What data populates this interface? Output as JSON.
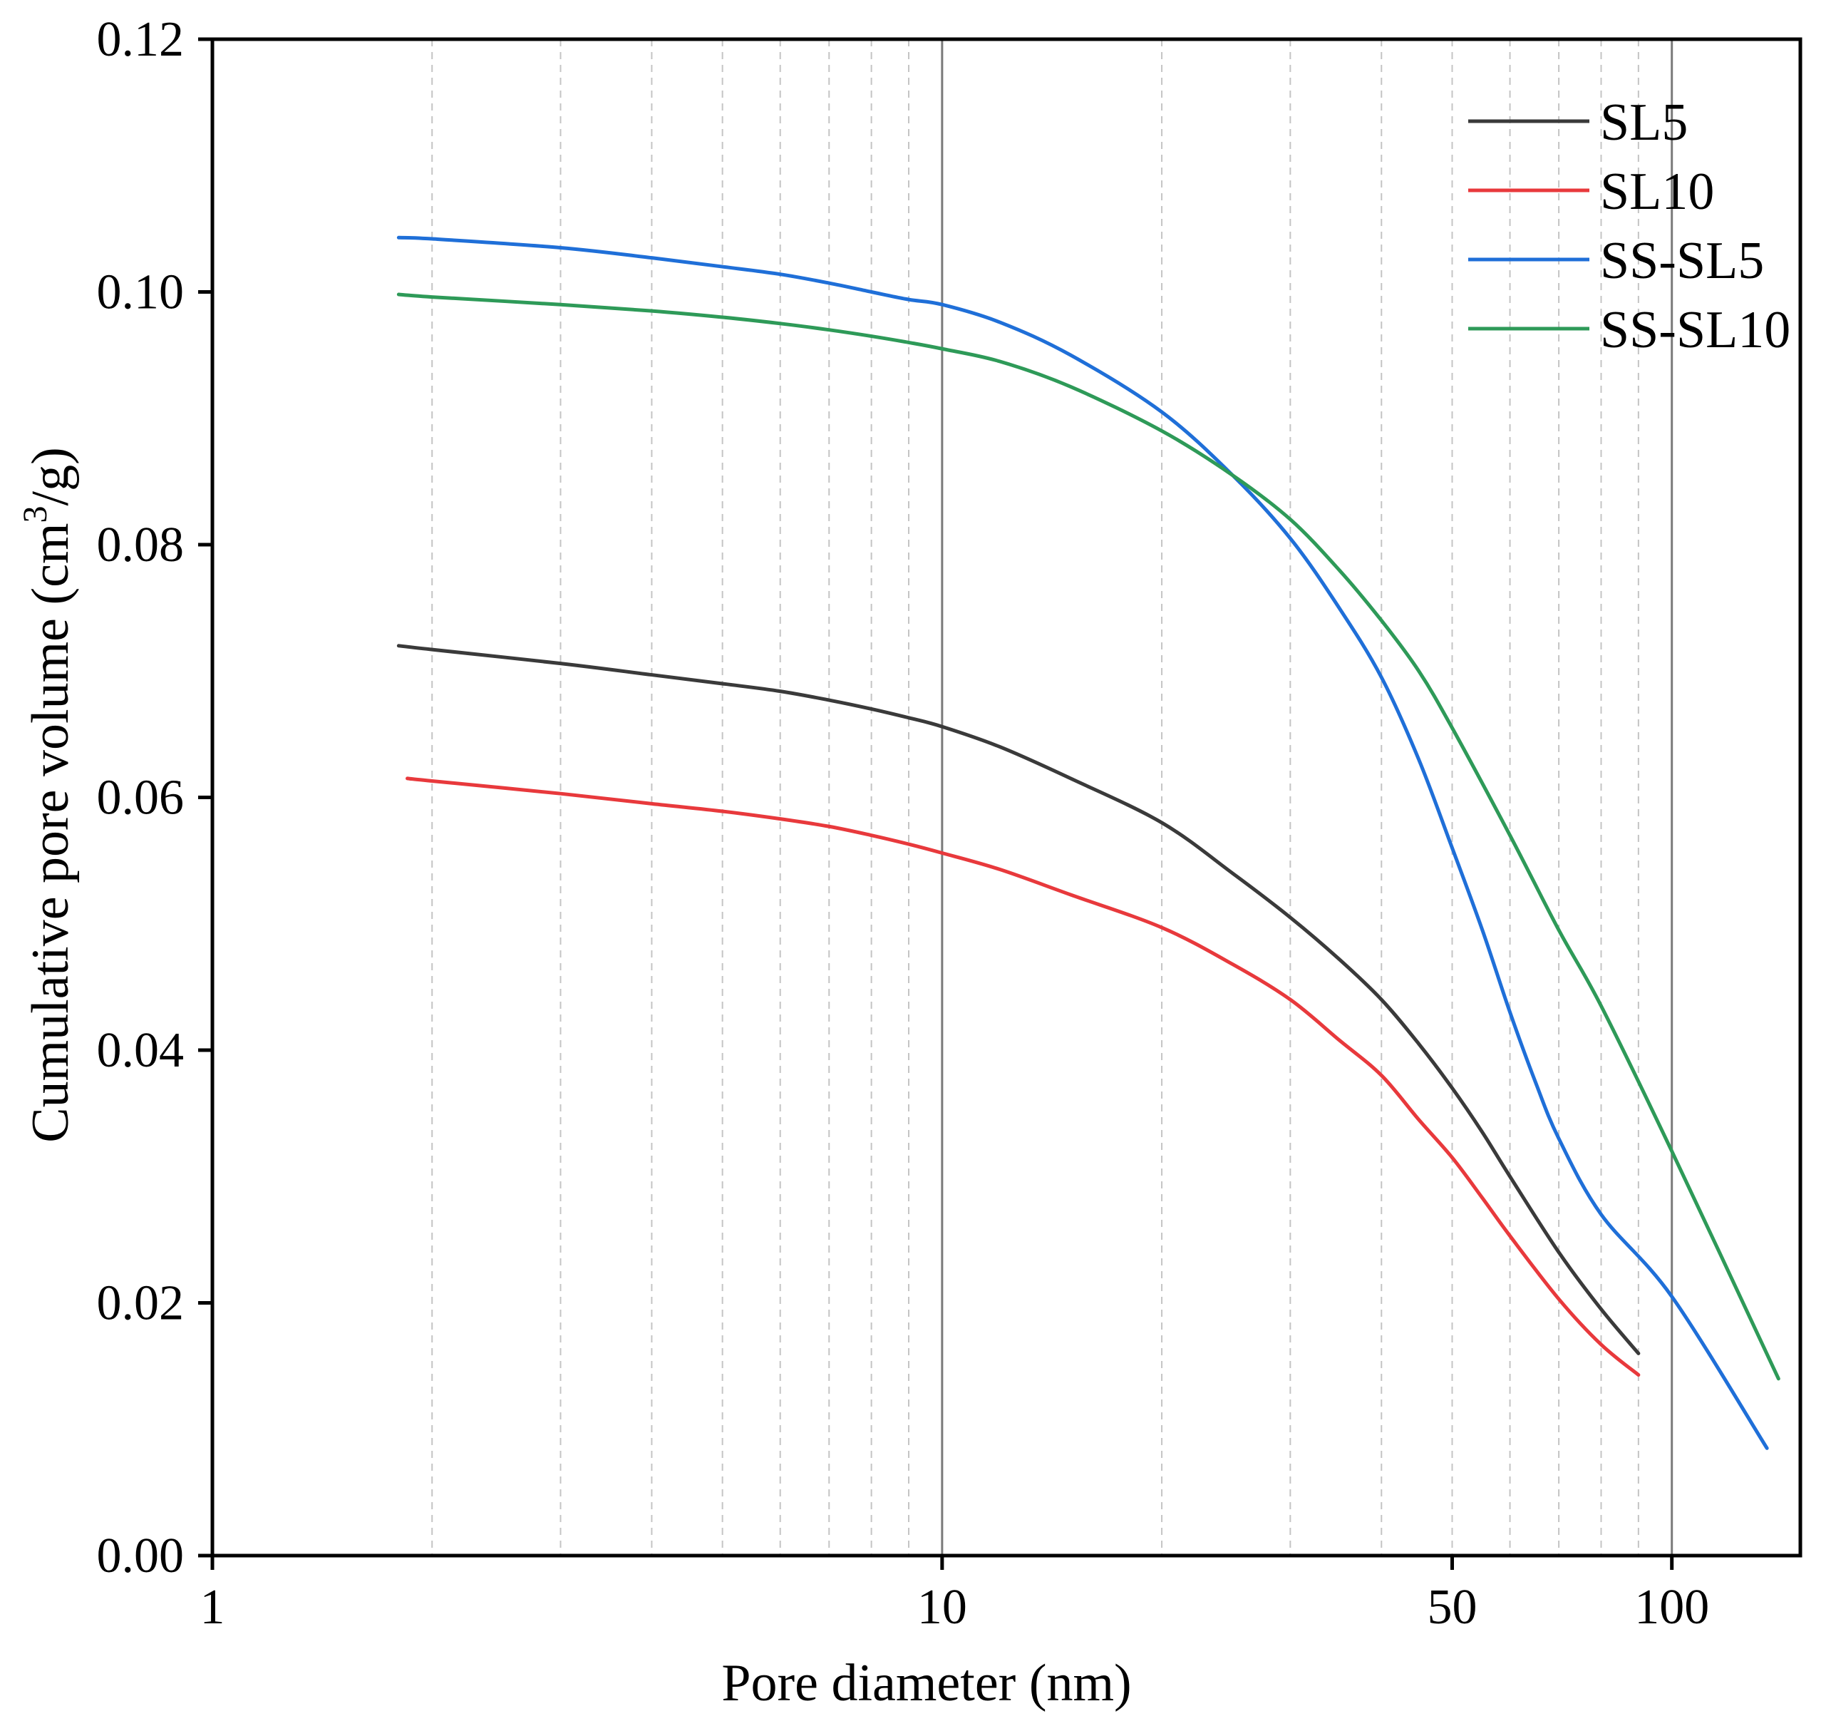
{
  "chart_data": {
    "type": "line",
    "title": "",
    "xlabel": "Pore diameter (nm)",
    "ylabel_main": "Cumulative pore volume (cm",
    "ylabel_sup": "3",
    "ylabel_end": "/g)",
    "xscale": "log",
    "xlim": [
      1,
      150
    ],
    "ylim": [
      0,
      0.12
    ],
    "x_ticks": [
      1,
      10,
      50,
      100
    ],
    "x_tick_labels": [
      "1",
      "10",
      "50",
      "100"
    ],
    "y_ticks": [
      0,
      0.02,
      0.04,
      0.06,
      0.08,
      0.1,
      0.12
    ],
    "y_tick_labels": [
      "0.00",
      "0.02",
      "0.04",
      "0.06",
      "0.08",
      "0.10",
      "0.12"
    ],
    "major_gridlines_x": [
      10,
      100
    ],
    "minor_gridlines_x": [
      2,
      3,
      4,
      5,
      6,
      7,
      8,
      9,
      20,
      30,
      40,
      50,
      60,
      70,
      80,
      90
    ],
    "legend_position": "top-right",
    "series": [
      {
        "name": "SL5",
        "color": "#3a3a3a",
        "x": [
          1.8,
          2,
          3,
          4,
          5,
          6,
          7,
          8,
          9,
          10,
          12,
          15,
          20,
          25,
          30,
          35,
          40,
          45,
          50,
          55,
          60,
          70,
          80,
          90
        ],
        "y": [
          0.072,
          0.0717,
          0.0706,
          0.0697,
          0.069,
          0.0684,
          0.0677,
          0.067,
          0.0663,
          0.0656,
          0.064,
          0.0615,
          0.058,
          0.054,
          0.0505,
          0.0472,
          0.044,
          0.0405,
          0.037,
          0.0335,
          0.03,
          0.024,
          0.0195,
          0.016
        ]
      },
      {
        "name": "SL10",
        "color": "#e8393c",
        "x": [
          1.85,
          2,
          3,
          4,
          5,
          6,
          7,
          8,
          9,
          10,
          12,
          15,
          20,
          25,
          30,
          35,
          40,
          45,
          50,
          55,
          60,
          70,
          80,
          90
        ],
        "y": [
          0.0615,
          0.0613,
          0.0603,
          0.0595,
          0.0589,
          0.0583,
          0.0577,
          0.057,
          0.0563,
          0.0556,
          0.0543,
          0.0523,
          0.0497,
          0.0468,
          0.044,
          0.0408,
          0.038,
          0.0345,
          0.0315,
          0.0283,
          0.0253,
          0.0203,
          0.0167,
          0.0143
        ]
      },
      {
        "name": "SS-SL5",
        "color": "#1f6fd8",
        "x": [
          1.8,
          2,
          3,
          4,
          5,
          6,
          7,
          8,
          9,
          10,
          12,
          15,
          20,
          25,
          30,
          35,
          40,
          45,
          50,
          55,
          60,
          65,
          70,
          80,
          100,
          135
        ],
        "y": [
          0.1043,
          0.1042,
          0.1035,
          0.1027,
          0.102,
          0.1014,
          0.1007,
          0.1,
          0.0994,
          0.099,
          0.0976,
          0.095,
          0.0905,
          0.0855,
          0.0805,
          0.075,
          0.0695,
          0.063,
          0.056,
          0.0495,
          0.043,
          0.0375,
          0.033,
          0.027,
          0.0205,
          0.0085
        ]
      },
      {
        "name": "SS-SL10",
        "color": "#2e9a58",
        "x": [
          1.8,
          2,
          3,
          4,
          5,
          6,
          7,
          8,
          9,
          10,
          12,
          15,
          20,
          25,
          30,
          35,
          40,
          45,
          50,
          60,
          70,
          80,
          100,
          140
        ],
        "y": [
          0.0998,
          0.0996,
          0.099,
          0.0985,
          0.098,
          0.0975,
          0.097,
          0.0965,
          0.096,
          0.0955,
          0.0945,
          0.0925,
          0.089,
          0.0855,
          0.082,
          0.078,
          0.074,
          0.07,
          0.0655,
          0.057,
          0.0495,
          0.0435,
          0.032,
          0.014
        ]
      }
    ]
  }
}
